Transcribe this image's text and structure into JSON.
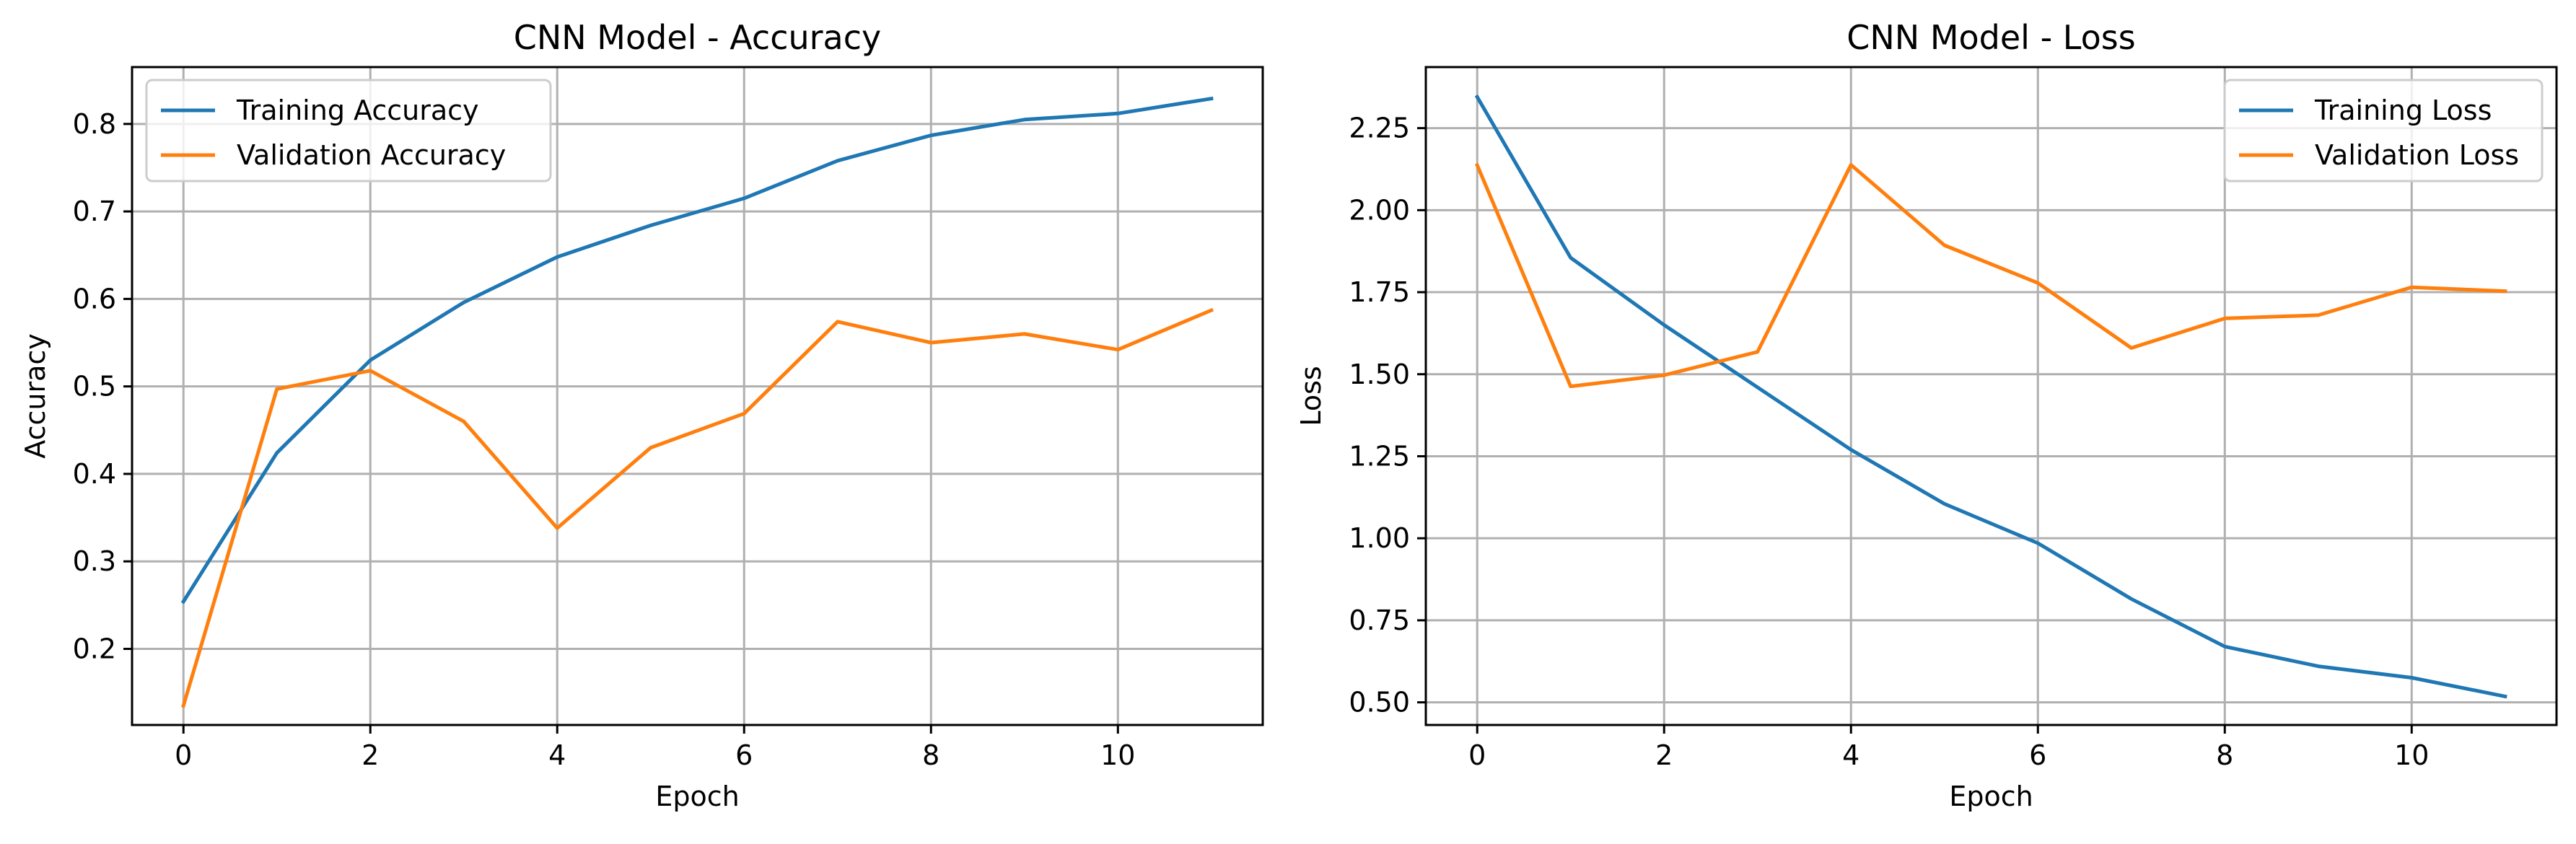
{
  "chart_data": [
    {
      "type": "line",
      "title": "CNN Model - Accuracy",
      "xlabel": "Epoch",
      "ylabel": "Accuracy",
      "x": [
        0,
        1,
        2,
        3,
        4,
        5,
        6,
        7,
        8,
        9,
        10,
        11
      ],
      "xlim": [
        -0.55,
        11.55
      ],
      "ylim": [
        0.113,
        0.865
      ],
      "xticks": [
        0,
        2,
        4,
        6,
        8,
        10
      ],
      "yticks": [
        0.2,
        0.3,
        0.4,
        0.5,
        0.6,
        0.7,
        0.8
      ],
      "xtick_labels": [
        "0",
        "2",
        "4",
        "6",
        "8",
        "10"
      ],
      "ytick_labels": [
        "0.2",
        "0.3",
        "0.4",
        "0.5",
        "0.6",
        "0.7",
        "0.8"
      ],
      "grid": true,
      "legend_position": "upper-left",
      "series": [
        {
          "name": "Training Accuracy",
          "color": "#1f77b4",
          "values": [
            0.254,
            0.424,
            0.53,
            0.596,
            0.648,
            0.684,
            0.715,
            0.758,
            0.787,
            0.805,
            0.812,
            0.829
          ]
        },
        {
          "name": "Validation Accuracy",
          "color": "#ff7f0e",
          "values": [
            0.135,
            0.497,
            0.518,
            0.46,
            0.338,
            0.43,
            0.469,
            0.574,
            0.55,
            0.56,
            0.542,
            0.587
          ]
        }
      ]
    },
    {
      "type": "line",
      "title": "CNN Model - Loss",
      "xlabel": "Epoch",
      "ylabel": "Loss",
      "x": [
        0,
        1,
        2,
        3,
        4,
        5,
        6,
        7,
        8,
        9,
        10,
        11
      ],
      "xlim": [
        -0.55,
        11.55
      ],
      "ylim": [
        0.431,
        2.436
      ],
      "xticks": [
        0,
        2,
        4,
        6,
        8,
        10
      ],
      "yticks": [
        0.5,
        0.75,
        1.0,
        1.25,
        1.5,
        1.75,
        2.0,
        2.25
      ],
      "xtick_labels": [
        "0",
        "2",
        "4",
        "6",
        "8",
        "10"
      ],
      "ytick_labels": [
        "0.50",
        "0.75",
        "1.00",
        "1.25",
        "1.50",
        "1.75",
        "2.00",
        "2.25"
      ],
      "grid": true,
      "legend_position": "upper-right",
      "series": [
        {
          "name": "Training Loss",
          "color": "#1f77b4",
          "values": [
            2.345,
            1.855,
            1.65,
            1.46,
            1.27,
            1.105,
            0.985,
            0.815,
            0.67,
            0.61,
            0.575,
            0.518
          ]
        },
        {
          "name": "Validation Loss",
          "color": "#ff7f0e",
          "values": [
            2.137,
            1.463,
            1.497,
            1.568,
            2.138,
            1.893,
            1.778,
            1.58,
            1.67,
            1.68,
            1.765,
            1.753
          ]
        }
      ]
    }
  ]
}
